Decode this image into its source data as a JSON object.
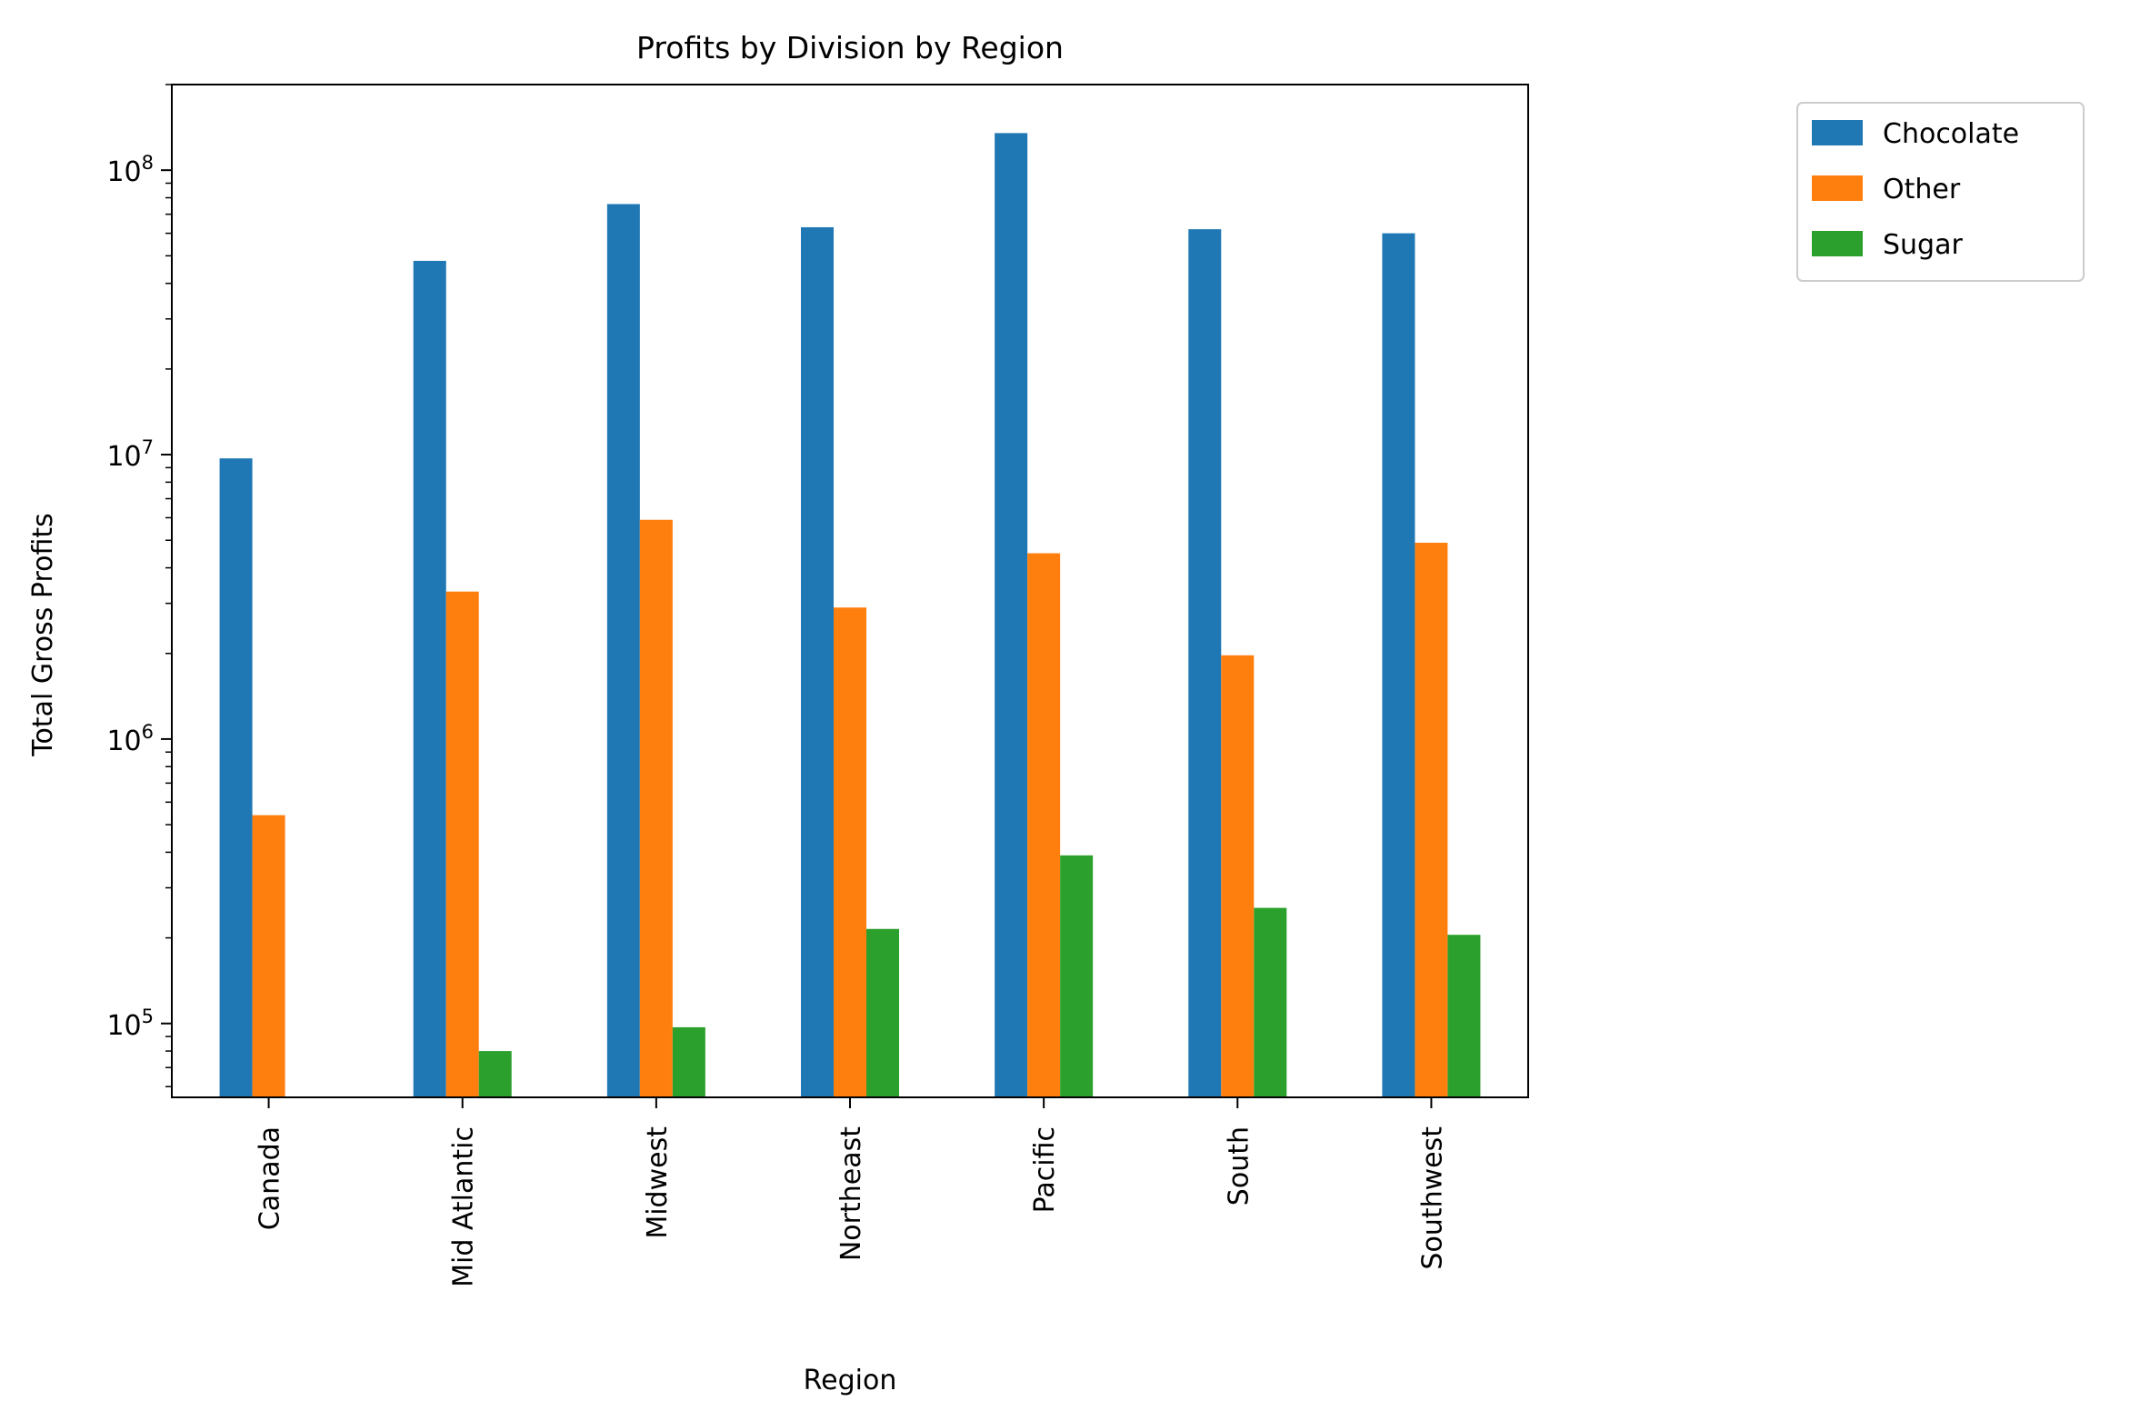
{
  "chart_data": {
    "type": "bar",
    "title": "Profits by Division by Region",
    "xlabel": "Region",
    "ylabel": "Total Gross Profits",
    "yscale": "log",
    "ylim": [
      55000,
      200000000
    ],
    "yticks": [
      {
        "value": 100000,
        "base": "10",
        "exp": "5"
      },
      {
        "value": 1000000,
        "base": "10",
        "exp": "6"
      },
      {
        "value": 10000000,
        "base": "10",
        "exp": "7"
      },
      {
        "value": 100000000,
        "base": "10",
        "exp": "8"
      }
    ],
    "categories": [
      "Canada",
      "Mid Atlantic",
      "Midwest",
      "Northeast",
      "Pacific",
      "South",
      "Southwest"
    ],
    "series": [
      {
        "name": "Chocolate",
        "color": "#1f77b4",
        "values": [
          9700000,
          48000000,
          76000000,
          63000000,
          135000000,
          62000000,
          60000000
        ]
      },
      {
        "name": "Other",
        "color": "#ff7f0e",
        "values": [
          540000,
          3300000,
          5900000,
          2900000,
          4500000,
          1970000,
          4900000
        ]
      },
      {
        "name": "Sugar",
        "color": "#2ca02c",
        "values": [
          null,
          80000,
          97000,
          215000,
          390000,
          255000,
          205000
        ]
      }
    ],
    "legend": {
      "position": "outside-upper-right"
    },
    "grid": false
  }
}
